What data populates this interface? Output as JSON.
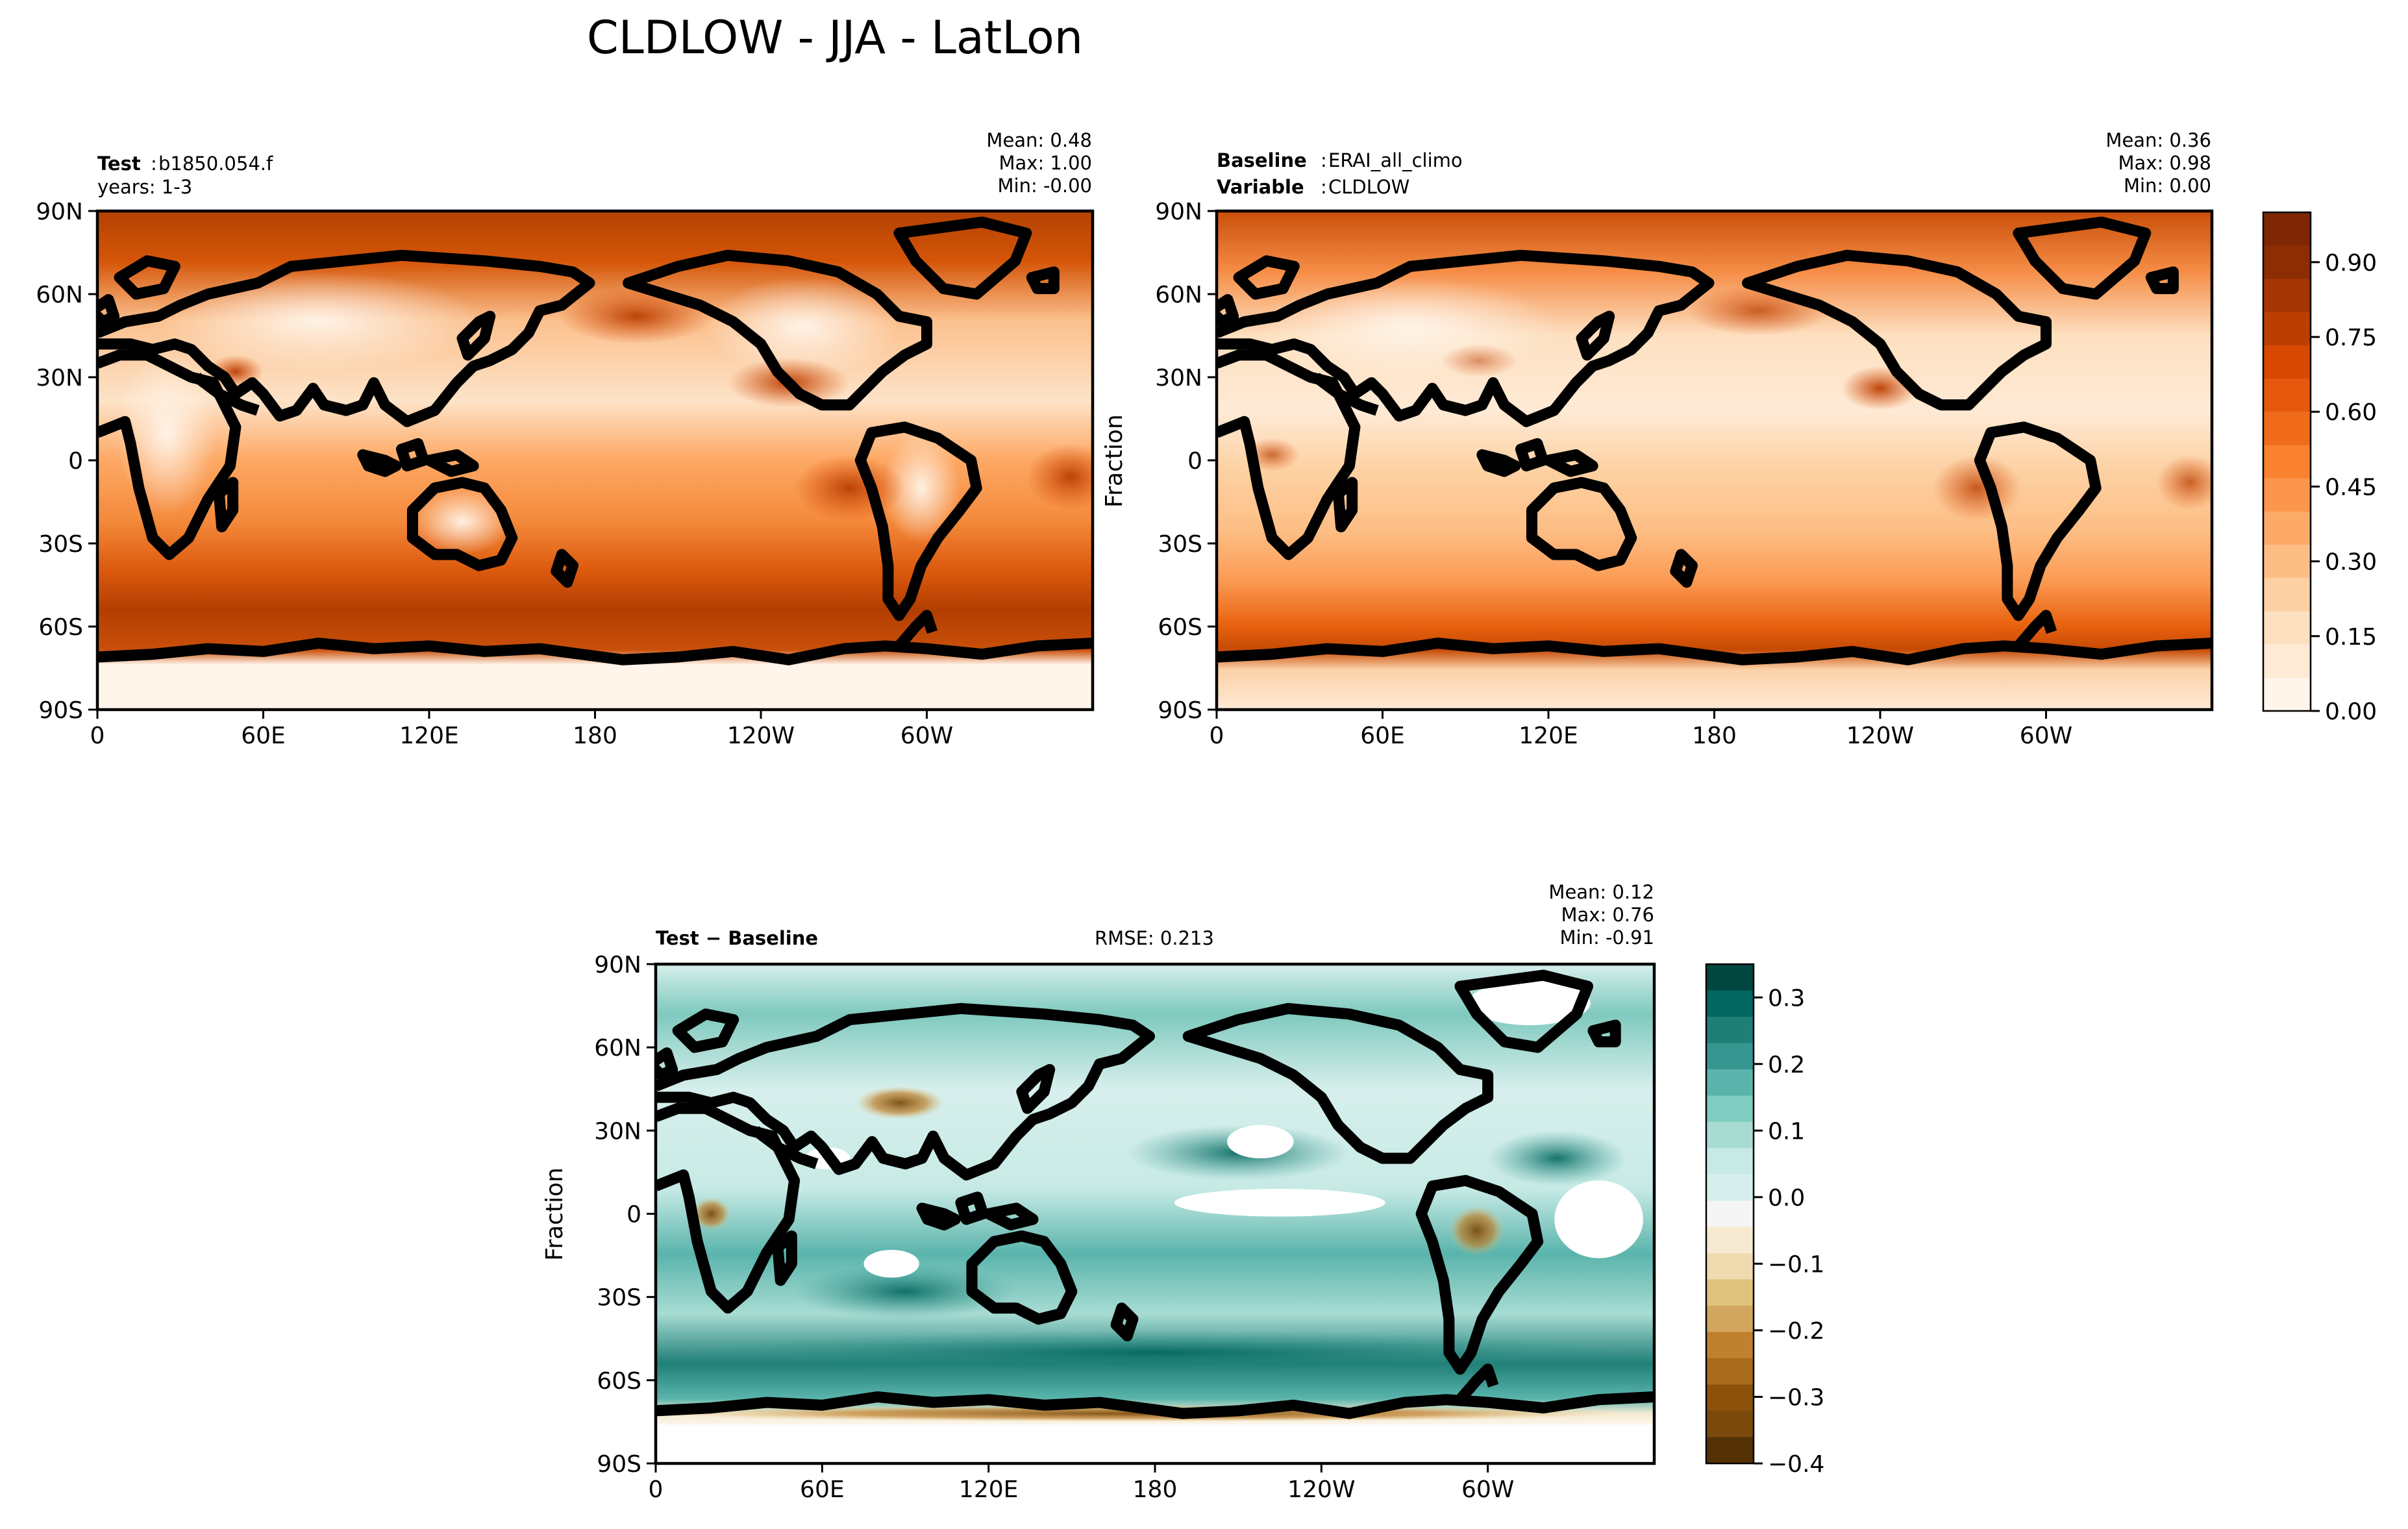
{
  "figure_title": "CLDLOW - JJA - LatLon",
  "chart_data": [
    {
      "type": "heatmap",
      "panel": "test",
      "label_bold": "Test",
      "label_text": "b1850.054.f",
      "label_line2": "years: 1-3",
      "stats": {
        "mean": "Mean:  0.48",
        "max": "Max:  1.00",
        "min": "Min: -0.00"
      },
      "ylabel": "",
      "xticks": [
        "0",
        "60E",
        "120E",
        "180",
        "120W",
        "60W"
      ],
      "yticks": [
        "90N",
        "60N",
        "30N",
        "0",
        "30S",
        "60S",
        "90S"
      ],
      "xlim": [
        0,
        360
      ],
      "ylim": [
        -90,
        90
      ],
      "colormap": "Oranges",
      "value_range": [
        0.0,
        1.0
      ]
    },
    {
      "type": "heatmap",
      "panel": "baseline",
      "label_bold": "Baseline",
      "label_text": "ERAI_all_climo",
      "label_bold2": "Variable",
      "label_text2": "CLDLOW",
      "stats": {
        "mean": "Mean:  0.36",
        "max": "Max:  0.98",
        "min": "Min:  0.00"
      },
      "ylabel": "Fraction",
      "xticks": [
        "0",
        "60E",
        "120E",
        "180",
        "120W",
        "60W"
      ],
      "yticks": [
        "90N",
        "60N",
        "30N",
        "0",
        "30S",
        "60S",
        "90S"
      ],
      "xlim": [
        0,
        360
      ],
      "ylim": [
        -90,
        90
      ],
      "colormap": "Oranges",
      "value_range": [
        0.0,
        1.0
      ]
    },
    {
      "type": "heatmap",
      "panel": "difference",
      "label_bold": "Test − Baseline",
      "rmse": "RMSE: 0.213",
      "stats": {
        "mean": "Mean:  0.12",
        "max": "Max:  0.76",
        "min": "Min: -0.91"
      },
      "ylabel": "Fraction",
      "xticks": [
        "0",
        "60E",
        "120E",
        "180",
        "120W",
        "60W"
      ],
      "yticks": [
        "90N",
        "60N",
        "30N",
        "0",
        "30S",
        "60S",
        "90S"
      ],
      "xlim": [
        0,
        360
      ],
      "ylim": [
        -90,
        90
      ],
      "colormap": "BrBG",
      "value_range": [
        -0.4,
        0.35
      ]
    }
  ],
  "colorbars": [
    {
      "name": "fraction",
      "ticks": [
        "0.00",
        "0.15",
        "0.30",
        "0.45",
        "0.60",
        "0.75",
        "0.90"
      ],
      "levels": [
        0.0,
        0.15,
        0.3,
        0.45,
        0.6,
        0.75,
        0.9
      ],
      "range": [
        0.0,
        1.0
      ],
      "colors": [
        "#fff5eb",
        "#feead5",
        "#fde0c0",
        "#fdd1a3",
        "#fdbe85",
        "#fdaa68",
        "#fd964d",
        "#f9812f",
        "#f16c1a",
        "#e5580d",
        "#d94801",
        "#bd3e02",
        "#a63603",
        "#8c2d04",
        "#7f2704"
      ]
    },
    {
      "name": "difference",
      "ticks": [
        "0.3",
        "0.2",
        "0.1",
        "0.0",
        "−0.1",
        "−0.2",
        "−0.3",
        "−0.4"
      ],
      "levels": [
        0.3,
        0.2,
        0.1,
        0.0,
        -0.1,
        -0.2,
        -0.3,
        -0.4
      ],
      "range": [
        -0.4,
        0.35
      ],
      "colors": [
        "#543005",
        "#7a4a0c",
        "#8c510a",
        "#a86a1c",
        "#bf812d",
        "#d2a65e",
        "#dfc27d",
        "#eedcb0",
        "#f6ebd2",
        "#f5f5f5",
        "#d7efec",
        "#c7eae5",
        "#a8dcd3",
        "#80cdc1",
        "#5ab4ac",
        "#35978f",
        "#1f7f77",
        "#01665e",
        "#01473f"
      ]
    }
  ]
}
